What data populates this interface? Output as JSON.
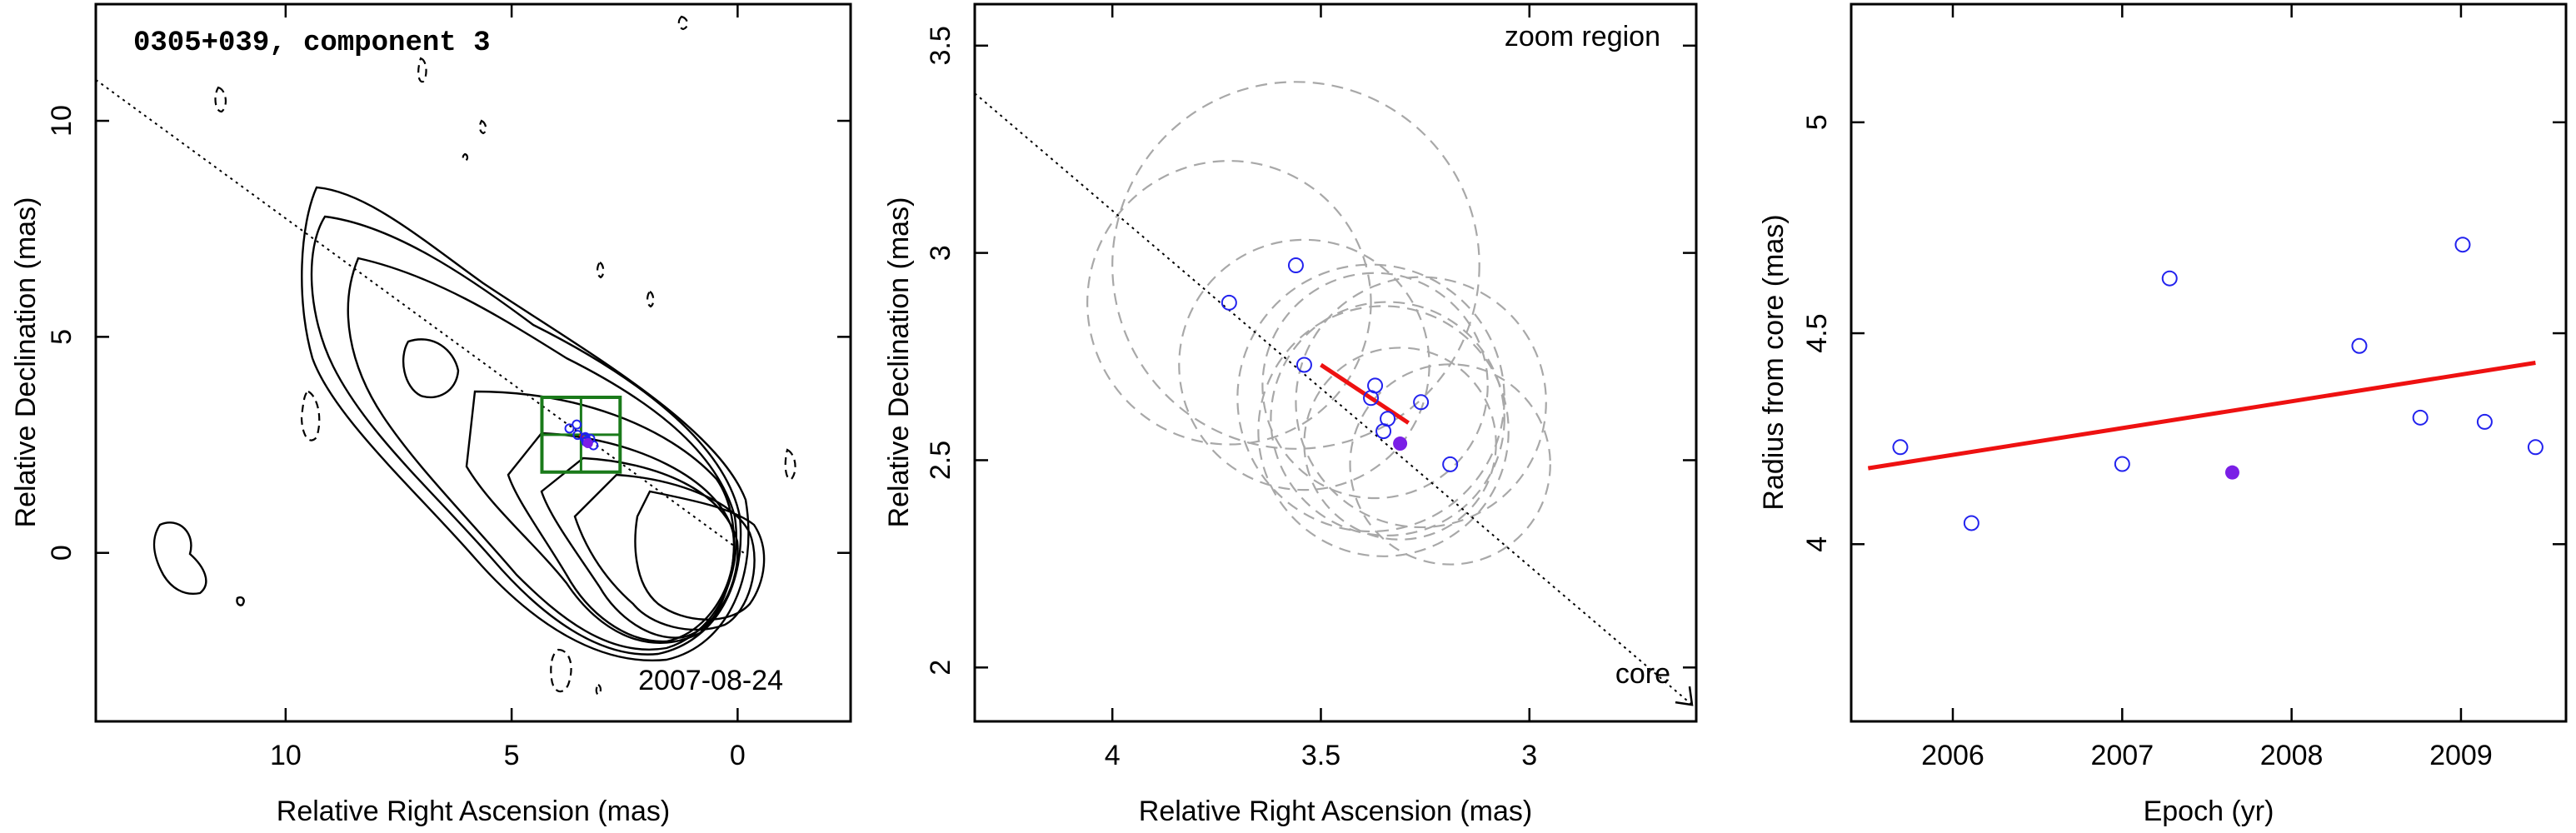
{
  "chart_data": [
    {
      "type": "scatter",
      "title": "0305+039, component 3",
      "xlabel": "Relative Right Ascension (mas)",
      "ylabel": "Relative Declination (mas)",
      "xlim": [
        14.2,
        -2.5
      ],
      "ylim": [
        -3.9,
        12.7
      ],
      "xticks": [
        10,
        5,
        0
      ],
      "yticks": [
        0,
        5,
        10
      ],
      "annotation": "2007-08-24",
      "overlays": [
        "radio contour map",
        "zoom region box",
        "dotted jet direction line"
      ],
      "points": {
        "open_blue": [
          [
            3.72,
            2.88
          ],
          [
            3.56,
            2.97
          ],
          [
            3.54,
            2.73
          ],
          [
            3.38,
            2.65
          ],
          [
            3.37,
            2.68
          ],
          [
            3.35,
            2.57
          ],
          [
            3.34,
            2.6
          ],
          [
            3.26,
            2.64
          ],
          [
            3.19,
            2.49
          ]
        ],
        "filled_purple": [
          [
            3.31,
            2.54
          ]
        ]
      },
      "fit_segment": [
        [
          3.5,
          2.73
        ],
        [
          3.29,
          2.59
        ]
      ]
    },
    {
      "type": "scatter",
      "xlabel": "Relative Right Ascension (mas)",
      "ylabel": "Relative Declination (mas)",
      "xlim": [
        4.33,
        2.6
      ],
      "ylim": [
        1.87,
        3.6
      ],
      "xticks": [
        4,
        3.5,
        3
      ],
      "yticks": [
        2,
        2.5,
        3,
        3.5
      ],
      "annotations": [
        "zoom region",
        "core"
      ],
      "points": {
        "open_blue": [
          [
            3.72,
            2.88
          ],
          [
            3.56,
            2.97
          ],
          [
            3.54,
            2.73
          ],
          [
            3.38,
            2.65
          ],
          [
            3.37,
            2.68
          ],
          [
            3.35,
            2.57
          ],
          [
            3.34,
            2.6
          ],
          [
            3.26,
            2.64
          ],
          [
            3.19,
            2.49
          ]
        ],
        "filled_purple": [
          [
            3.31,
            2.54
          ]
        ]
      },
      "fit_segment": [
        [
          3.5,
          2.73
        ],
        [
          3.29,
          2.59
        ]
      ],
      "dashed_circles": [
        {
          "center": [
            3.72,
            2.88
          ],
          "radius": 0.34
        },
        {
          "center": [
            3.56,
            2.97
          ],
          "radius": 0.44
        },
        {
          "center": [
            3.54,
            2.73
          ],
          "radius": 0.3
        },
        {
          "center": [
            3.38,
            2.65
          ],
          "radius": 0.32
        },
        {
          "center": [
            3.37,
            2.68
          ],
          "radius": 0.27
        },
        {
          "center": [
            3.35,
            2.57
          ],
          "radius": 0.3
        },
        {
          "center": [
            3.34,
            2.6
          ],
          "radius": 0.28
        },
        {
          "center": [
            3.26,
            2.64
          ],
          "radius": 0.3
        },
        {
          "center": [
            3.19,
            2.49
          ],
          "radius": 0.24
        },
        {
          "center": [
            3.31,
            2.54
          ],
          "radius": 0.23
        }
      ]
    },
    {
      "type": "scatter",
      "xlabel": "Epoch (yr)",
      "ylabel": "Radius from core (mas)",
      "xlim": [
        2005.4,
        2009.62
      ],
      "ylim": [
        3.58,
        5.28
      ],
      "xticks": [
        2006,
        2007,
        2008,
        2009
      ],
      "yticks": [
        4,
        4.5,
        5
      ],
      "points": {
        "open_blue": [
          [
            2005.69,
            4.23
          ],
          [
            2006.11,
            4.05
          ],
          [
            2007.0,
            4.19
          ],
          [
            2007.28,
            4.63
          ],
          [
            2008.4,
            4.47
          ],
          [
            2008.76,
            4.3
          ],
          [
            2009.01,
            4.71
          ],
          [
            2009.14,
            4.29
          ],
          [
            2009.44,
            4.23
          ]
        ],
        "filled_purple": [
          [
            2007.65,
            4.17
          ]
        ]
      },
      "fit_line": [
        [
          2005.5,
          4.18
        ],
        [
          2009.44,
          4.43
        ]
      ]
    }
  ],
  "colors": {
    "open_point": "#2222ee",
    "filled_point": "#7a1fe6",
    "fit_line": "#ee1111",
    "zoom_box": "#1a7a1a",
    "circle": "#a8a8a8"
  }
}
